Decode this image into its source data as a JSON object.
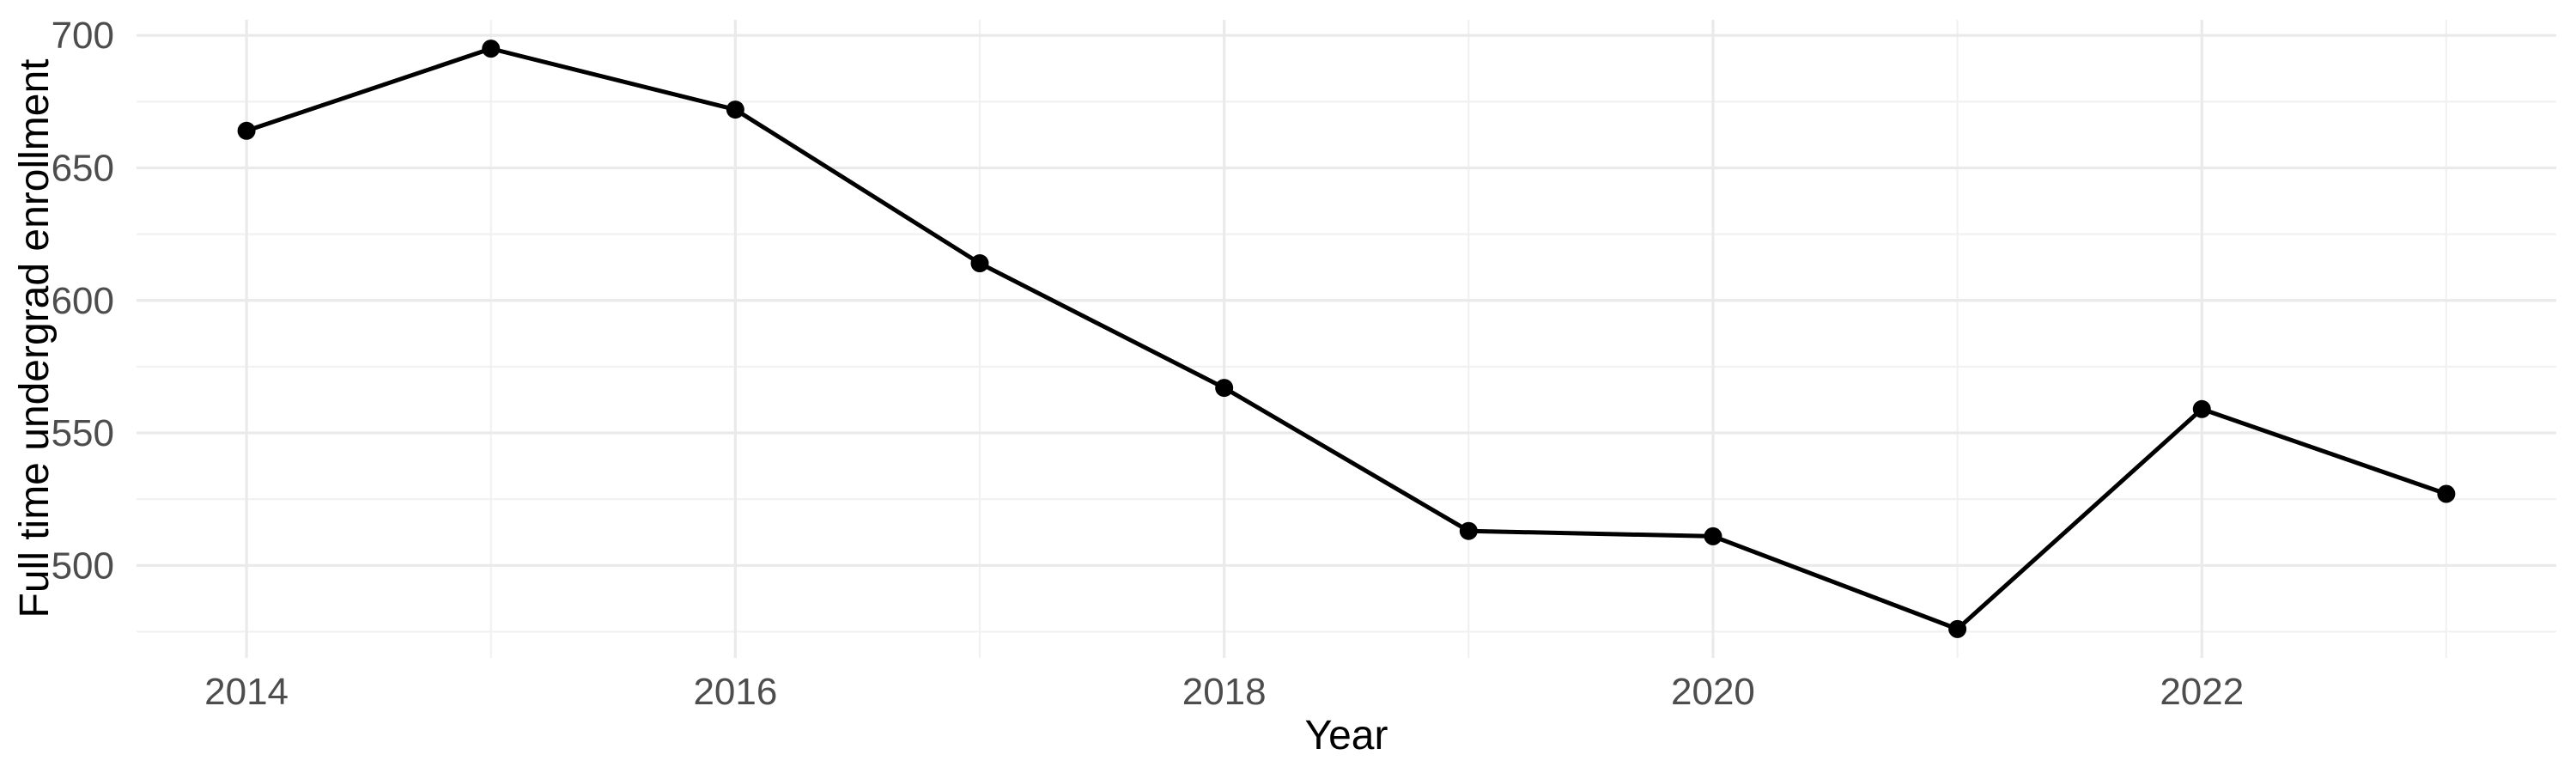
{
  "chart_data": {
    "type": "line",
    "title": "",
    "xlabel": "Year",
    "ylabel": "Full time undergrad enrollment",
    "x": [
      2014,
      2015,
      2016,
      2017,
      2018,
      2019,
      2020,
      2021,
      2022,
      2023
    ],
    "values": [
      664,
      695,
      672,
      614,
      567,
      513,
      511,
      476,
      559,
      527
    ],
    "series_name": "Full time undergrad enrollment",
    "x_major_ticks": [
      2014,
      2016,
      2018,
      2020,
      2022
    ],
    "x_minor_ticks": [
      2015,
      2017,
      2019,
      2021,
      2023
    ],
    "y_major_ticks": [
      500,
      550,
      600,
      650,
      700
    ],
    "y_minor_ticks": [
      475,
      525,
      575,
      625,
      675
    ],
    "xlim": [
      2013.55,
      2023.45
    ],
    "ylim": [
      465.1,
      705.9
    ],
    "grid": true,
    "legend_position": "none",
    "line_color": "#000000",
    "point_color": "#000000",
    "grid_major_color": "#EAEAEA",
    "grid_minor_color": "#F1F1F1",
    "tick_label_color": "#4D4D4D",
    "axis_title_color": "#000000",
    "background_color": "#FFFFFF"
  }
}
